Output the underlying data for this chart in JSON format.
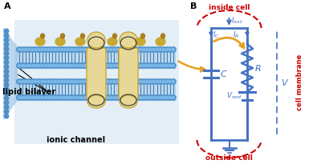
{
  "panel_A_label": "A",
  "panel_B_label": "B",
  "lipid_bilayer_text": "lipid bilayer",
  "ionic_channel_text": "ionic channel",
  "inside_cell_text": "inside cell",
  "outside_cell_text": "outside cell",
  "cell_membrane_text": "cell membrane",
  "label_Iext": "$I_{ext}$",
  "label_IC": "$I_C$",
  "label_IR": "$I_R$",
  "label_C": "$C$",
  "label_R": "$R$",
  "label_Vrest": "$V_{rest}$",
  "label_V": "$V$",
  "circuit_color": "#4472c4",
  "red_color": "#cc0000",
  "arrow_color": "#e8a020",
  "bg_color": "#ffffff",
  "bilayer_blue": "#5b9bd5",
  "bilayer_blue_dark": "#2e6fad",
  "channel_yellow": "#e8d898",
  "channel_yellow_dark": "#c8a830"
}
